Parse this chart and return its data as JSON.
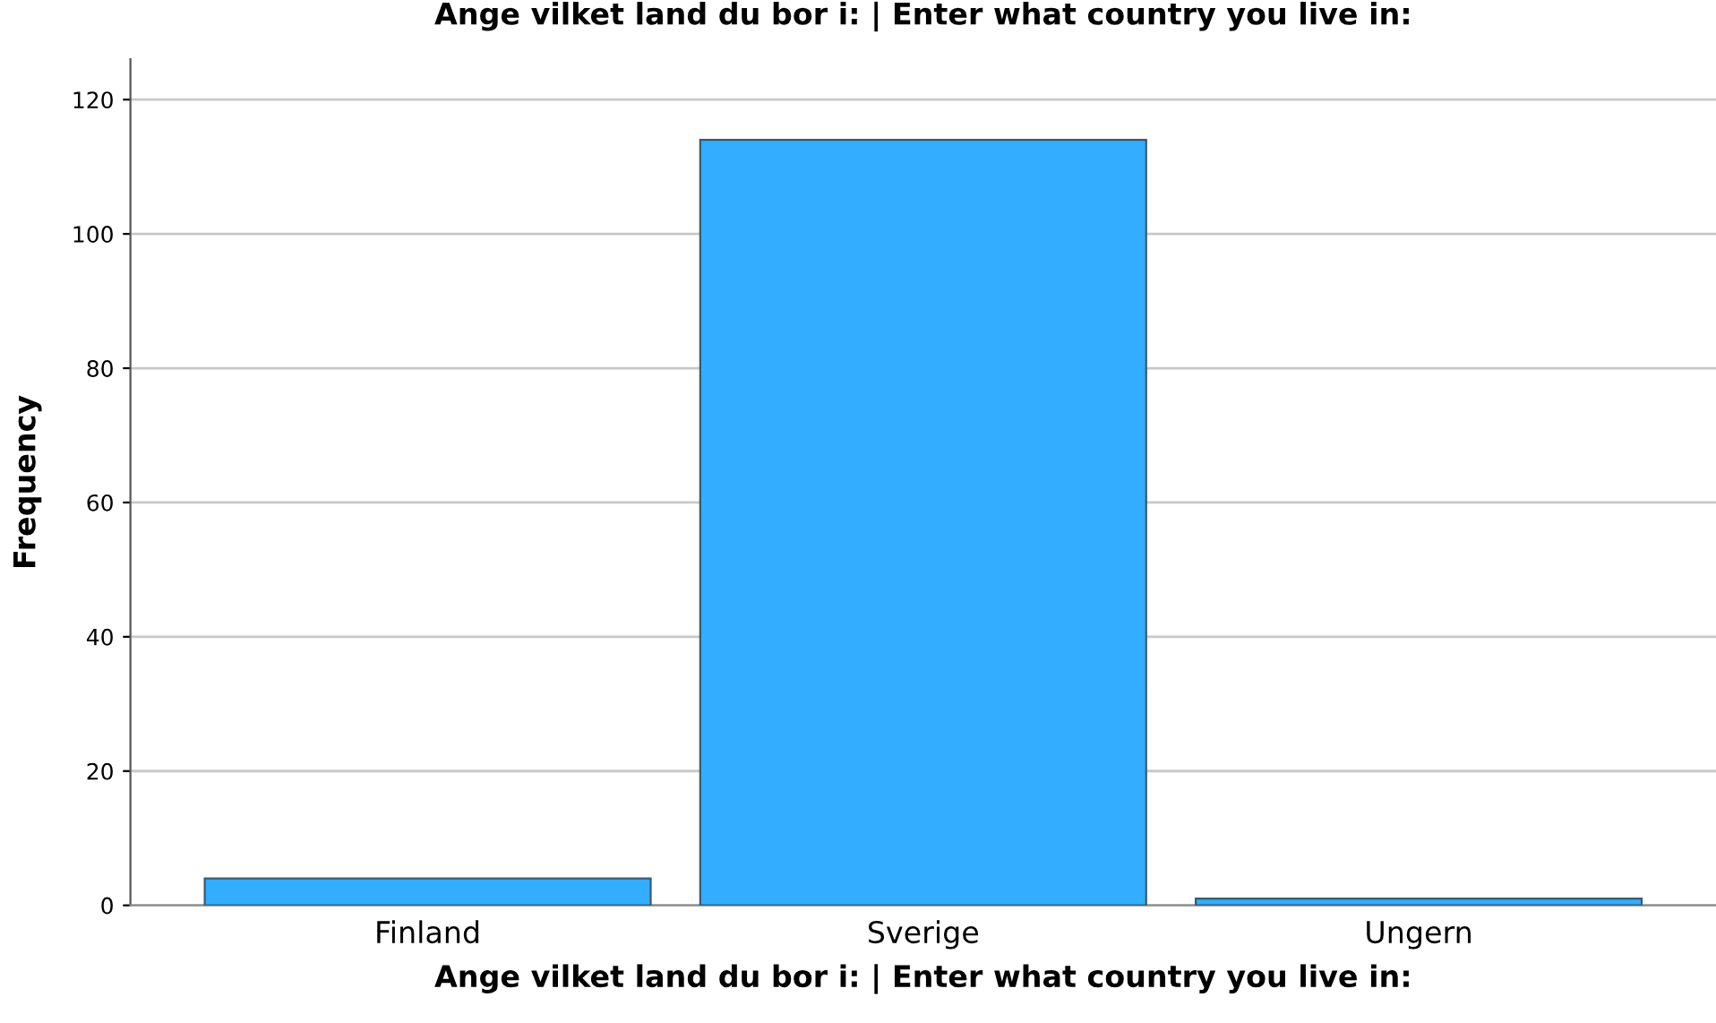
{
  "chart_data": {
    "type": "bar",
    "title": "Ange vilket land du bor i: | Enter what country you live in:",
    "xlabel": "Ange vilket land du bor i: | Enter what country you live in:",
    "ylabel": "Frequency",
    "categories": [
      "Finland",
      "Sverige",
      "Ungern"
    ],
    "values": [
      4,
      114,
      1
    ],
    "color": "#33adff",
    "ylim": [
      0,
      126
    ],
    "yticks": [
      0,
      20,
      40,
      60,
      80,
      100,
      120
    ],
    "grid": "y"
  }
}
